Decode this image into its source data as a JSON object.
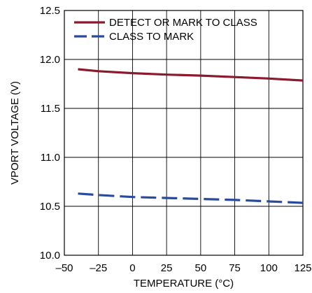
{
  "chart_data": {
    "type": "line",
    "title": "",
    "xlabel": "TEMPERATURE (°C)",
    "ylabel": "VPORT VOLTAGE (V)",
    "xlim": [
      -50,
      125
    ],
    "ylim": [
      10.0,
      12.5
    ],
    "x_ticks": [
      -50,
      -25,
      0,
      25,
      50,
      75,
      100,
      125
    ],
    "y_ticks": [
      10.0,
      10.5,
      11.0,
      11.5,
      12.0,
      12.5
    ],
    "x_tick_labels": [
      "–50",
      "–25",
      "0",
      "25",
      "50",
      "75",
      "100",
      "125"
    ],
    "y_tick_labels": [
      "10.0",
      "10.5",
      "11.0",
      "11.5",
      "12.0",
      "12.5"
    ],
    "grid": true,
    "legend_position": "top-left",
    "series": [
      {
        "name": "DETECT OR MARK TO CLASS",
        "color": "#8b1a2e",
        "dash": "solid",
        "x": [
          -40,
          -25,
          0,
          25,
          50,
          75,
          100,
          125
        ],
        "y": [
          11.9,
          11.88,
          11.86,
          11.845,
          11.835,
          11.82,
          11.805,
          11.785
        ]
      },
      {
        "name": "CLASS TO MARK",
        "color": "#2a4b9b",
        "dash": "dashed",
        "x": [
          -40,
          -25,
          0,
          25,
          50,
          75,
          100,
          125
        ],
        "y": [
          10.63,
          10.615,
          10.595,
          10.585,
          10.575,
          10.565,
          10.55,
          10.535
        ]
      }
    ]
  }
}
